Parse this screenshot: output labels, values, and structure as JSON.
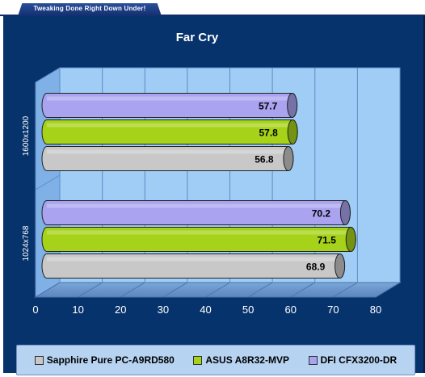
{
  "site": {
    "tagline": "Tweaking Done Right Down Under!"
  },
  "chart_data": {
    "type": "bar",
    "orientation": "horizontal",
    "style": "3d-cylinder",
    "title": "Far Cry",
    "xlabel": "",
    "ylabel": "",
    "categories": [
      "1600x1200",
      "1024x768"
    ],
    "series": [
      {
        "name": "DFI CFX3200-DR",
        "color": "#a9a3f0",
        "values": [
          57.7,
          70.2
        ]
      },
      {
        "name": "ASUS A8R32-MVP",
        "color": "#a6d21a",
        "values": [
          57.8,
          71.5
        ]
      },
      {
        "name": "Sapphire Pure PC-A9RD580",
        "color": "#c8c8c8",
        "values": [
          56.8,
          68.9
        ]
      }
    ],
    "xlim": [
      0,
      80
    ],
    "xticks": [
      0,
      10,
      20,
      30,
      40,
      50,
      60,
      70,
      80
    ],
    "grid": true,
    "legend_position": "bottom",
    "legend_order": [
      "Sapphire Pure PC-A9RD580",
      "ASUS A8R32-MVP",
      "DFI CFX3200-DR"
    ]
  },
  "colors": {
    "background": "#07336d",
    "plot_area": "#9fcdf5",
    "floor": "#6c98cd",
    "text": "#ffffff"
  }
}
